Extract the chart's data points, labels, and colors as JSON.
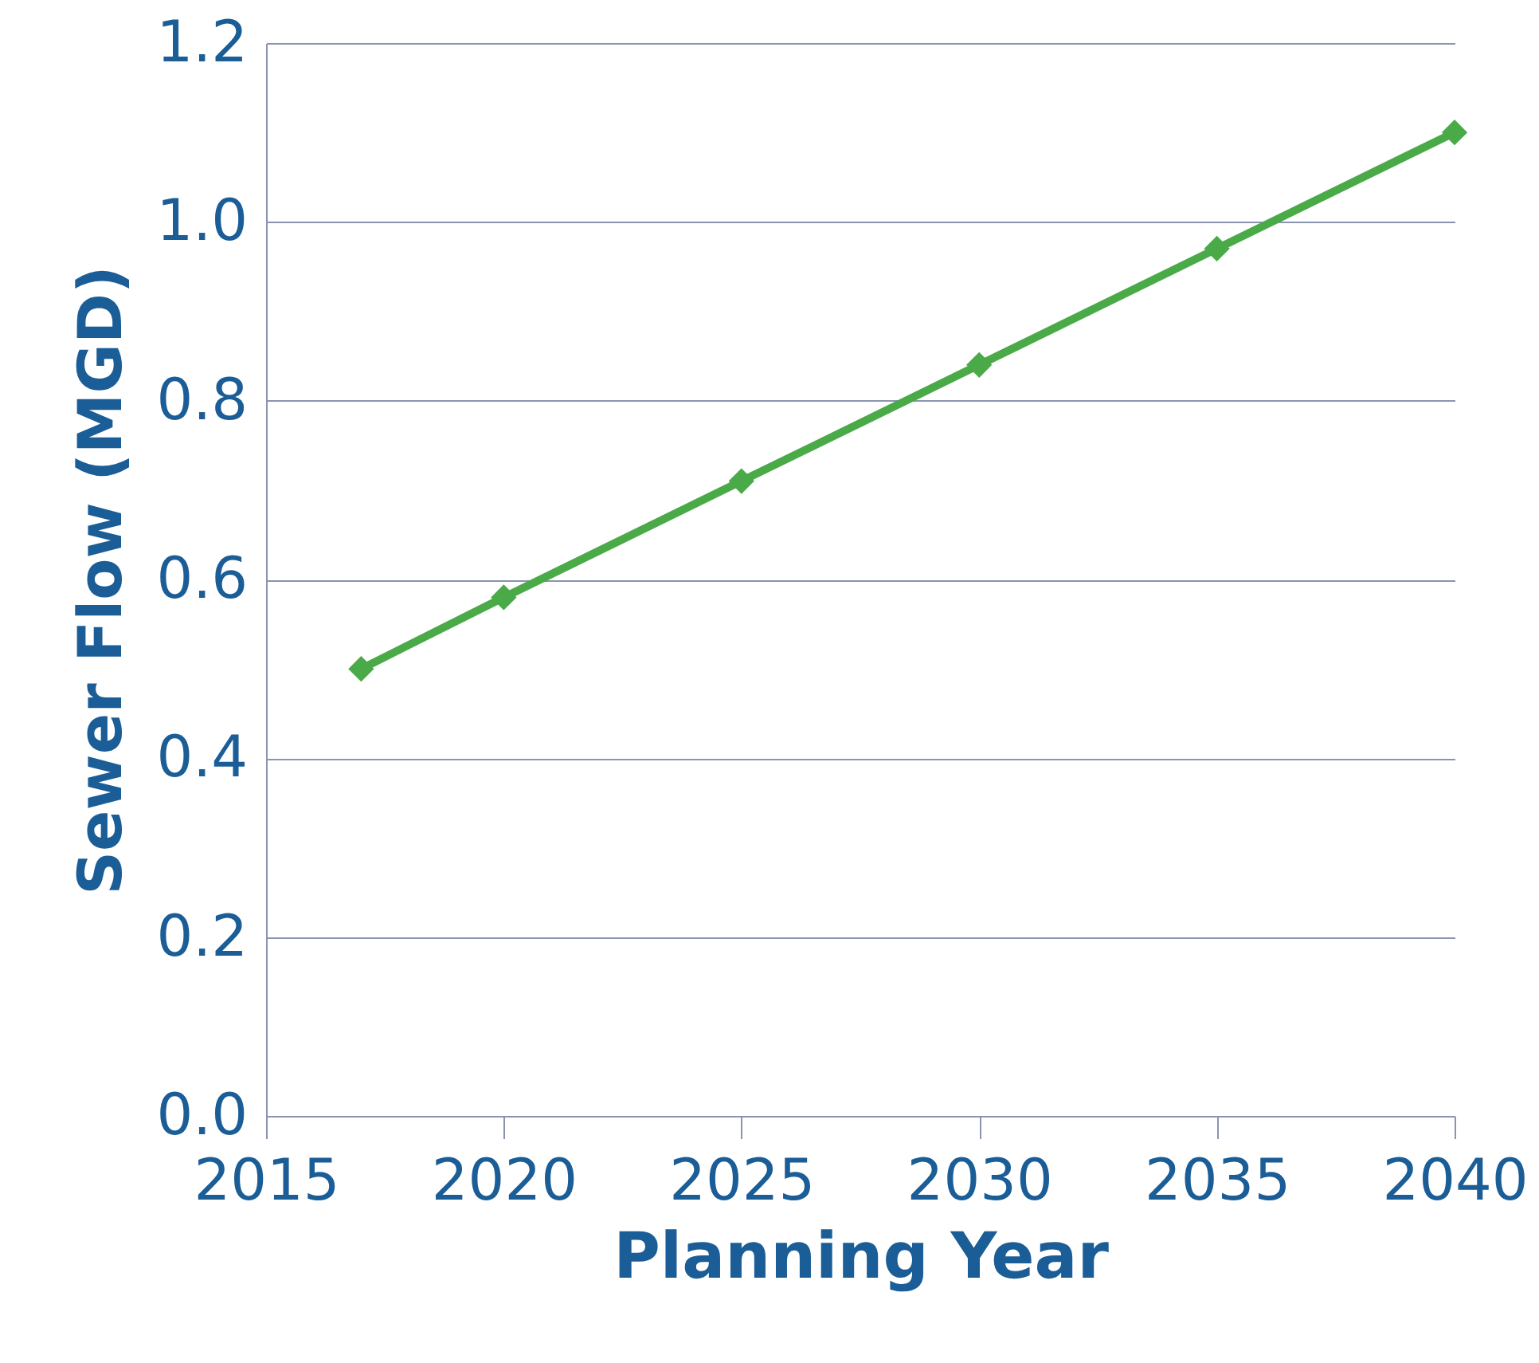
{
  "chart_data": {
    "type": "line",
    "xlabel": "Planning Year",
    "ylabel": "Sewer Flow (MGD)",
    "x": [
      2017,
      2020,
      2025,
      2030,
      2035,
      2040
    ],
    "series": [
      {
        "color": "#4aaa48",
        "values": [
          0.5,
          0.58,
          0.71,
          0.84,
          0.97,
          1.1
        ]
      }
    ],
    "xlim": [
      2015,
      2040
    ],
    "xticks": [
      2015,
      2020,
      2025,
      2030,
      2035,
      2040
    ],
    "ylim": [
      0,
      1.2
    ],
    "yticks": [
      {
        "value": 0,
        "label": "0.0"
      },
      {
        "value": 0.2,
        "label": "0.2"
      },
      {
        "value": 0.4,
        "label": "0.4"
      },
      {
        "value": 0.6,
        "label": "0.6"
      },
      {
        "value": 0.8,
        "label": "0.8"
      },
      {
        "value": 1.0,
        "label": "1.0"
      },
      {
        "value": 1.2,
        "label": "1.2"
      }
    ],
    "grid": "y",
    "marker": "diamond",
    "line_style": "solid"
  }
}
